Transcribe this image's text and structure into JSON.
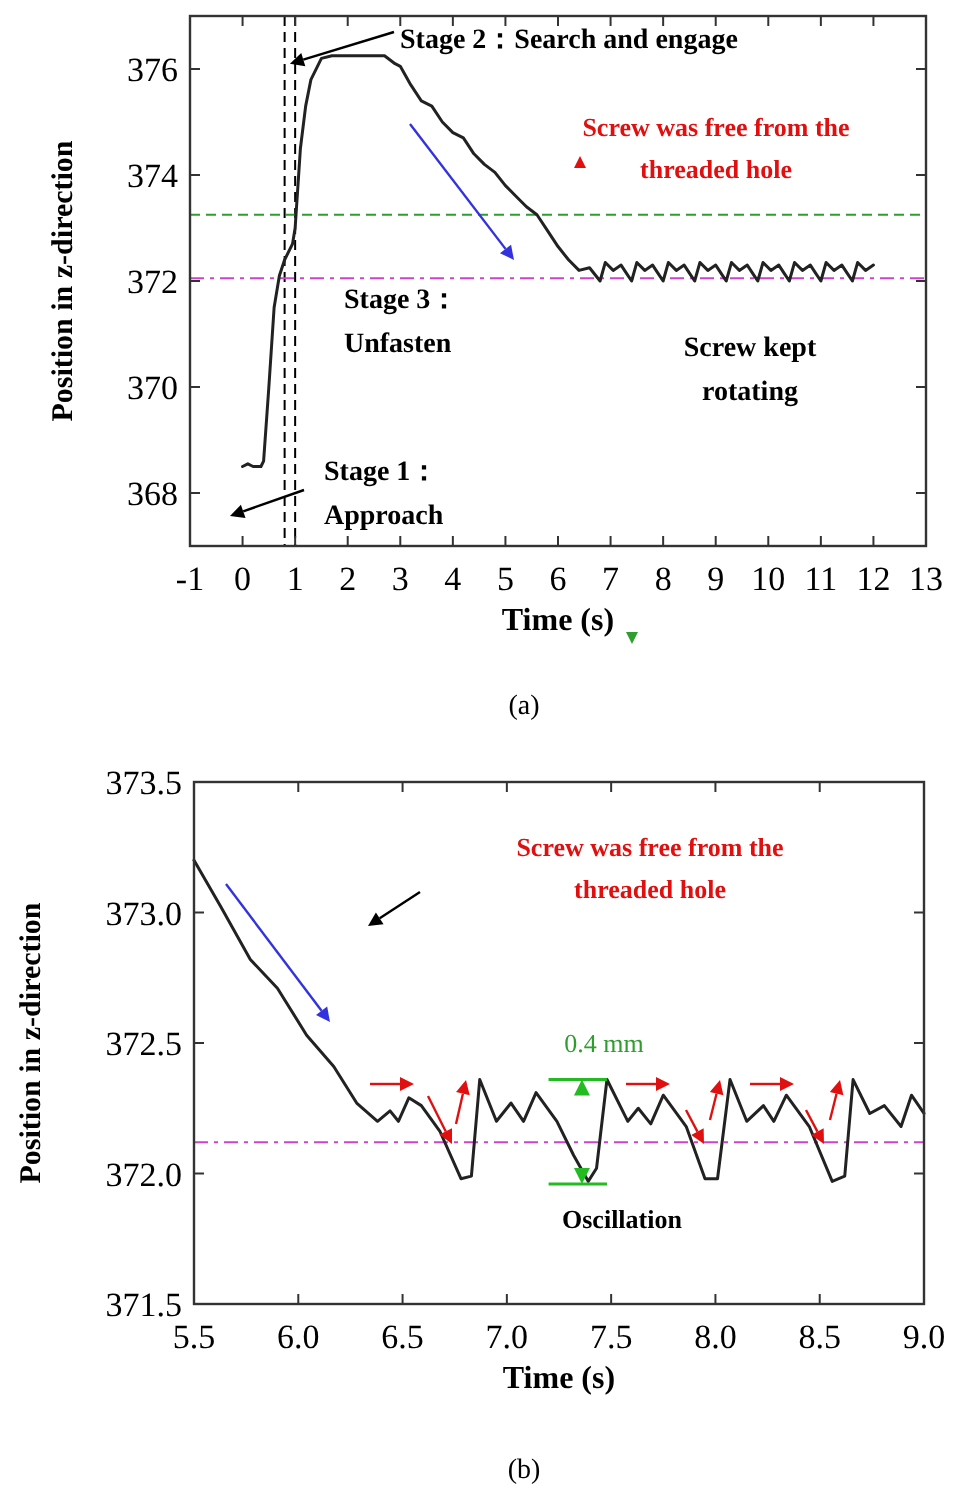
{
  "chart_data": [
    {
      "type": "line",
      "xlabel": "Time (s)",
      "ylabel": "Position in z-direction",
      "xlim": [
        -1,
        13
      ],
      "ylim": [
        367,
        377
      ],
      "xticks": [
        -1,
        0,
        1,
        2,
        3,
        4,
        5,
        6,
        7,
        8,
        9,
        10,
        11,
        12,
        13
      ],
      "yticks": [
        368,
        370,
        372,
        374,
        376
      ],
      "series": [
        {
          "color": "#222222",
          "x": [
            0,
            0.1,
            0.2,
            0.35,
            0.4,
            0.5,
            0.6,
            0.7,
            0.8,
            0.95,
            1.0,
            1.1,
            1.2,
            1.3,
            1.5,
            1.7,
            2.0,
            2.5,
            2.7,
            2.9,
            3.0,
            3.2,
            3.4,
            3.6,
            3.8,
            4.0,
            4.2,
            4.4,
            4.6,
            4.8,
            5.0,
            5.2,
            5.4,
            5.6,
            5.8,
            6.0,
            6.2,
            6.4,
            6.6,
            6.8,
            6.9,
            7.05,
            7.2,
            7.3,
            7.4,
            7.5,
            7.65,
            7.8,
            7.9,
            8.0,
            8.1,
            8.25,
            8.4,
            8.5,
            8.6,
            8.7,
            8.85,
            9.0,
            9.1,
            9.2,
            9.3,
            9.45,
            9.6,
            9.7,
            9.8,
            9.9,
            10.05,
            10.2,
            10.3,
            10.4,
            10.5,
            10.65,
            10.8,
            10.9,
            11.0,
            11.1,
            11.25,
            11.4,
            11.5,
            11.6,
            11.7,
            11.85,
            12.0
          ],
          "values": [
            368.5,
            368.55,
            368.5,
            368.5,
            368.6,
            370.0,
            371.5,
            372.1,
            372.4,
            372.7,
            373.0,
            374.5,
            375.3,
            375.8,
            376.2,
            376.25,
            376.25,
            376.25,
            376.25,
            376.1,
            376.05,
            375.7,
            375.4,
            375.3,
            375.0,
            374.8,
            374.7,
            374.4,
            374.2,
            374.05,
            373.8,
            373.6,
            373.4,
            373.25,
            372.95,
            372.65,
            372.4,
            372.2,
            372.25,
            372.0,
            372.35,
            372.2,
            372.3,
            372.15,
            372.0,
            372.35,
            372.2,
            372.3,
            372.15,
            372.0,
            372.35,
            372.2,
            372.3,
            372.15,
            372.0,
            372.35,
            372.2,
            372.3,
            372.15,
            372.0,
            372.35,
            372.2,
            372.3,
            372.15,
            372.0,
            372.35,
            372.2,
            372.3,
            372.15,
            372.0,
            372.35,
            372.2,
            372.3,
            372.15,
            372.0,
            372.35,
            372.2,
            372.3,
            372.15,
            372.0,
            372.35,
            372.2,
            372.3
          ]
        }
      ],
      "ref_lines": [
        {
          "axis": "x",
          "value": 0.8,
          "color": "#000000",
          "line_style": "dashed"
        },
        {
          "axis": "x",
          "value": 1.0,
          "color": "#000000",
          "line_style": "dashed"
        },
        {
          "axis": "y",
          "value": 373.25,
          "color": "#2e9e2e",
          "line_style": "dashed"
        },
        {
          "axis": "y",
          "value": 372.05,
          "color": "#cc44cc",
          "line_style": "dashdot"
        }
      ],
      "annotations": [
        {
          "text": "Stage 2：Search and engage",
          "x": 0.9,
          "y": 376.1
        },
        "Screw was free from the\nthreaded hole",
        "Stage 3：\nUnfasten",
        "Screw kept\nrotating",
        "Stage 1：\nApproach",
        "(a)"
      ],
      "grid": false,
      "marker": "none",
      "line_style": "solid"
    },
    {
      "type": "line",
      "xlabel": "Time (s)",
      "ylabel": "Position in z-direction",
      "xlim": [
        5.5,
        9.0
      ],
      "ylim": [
        371.5,
        373.5
      ],
      "xticks": [
        {
          "value": 5.5,
          "label": "5.5"
        },
        {
          "value": 6,
          "label": "6.0"
        },
        {
          "value": 6.5,
          "label": "6.5"
        },
        {
          "value": 7,
          "label": "7.0"
        },
        {
          "value": 7.5,
          "label": "7.5"
        },
        {
          "value": 8,
          "label": "8.0"
        },
        {
          "value": 8.5,
          "label": "8.5"
        },
        {
          "value": 9,
          "label": "9.0"
        }
      ],
      "yticks": [
        {
          "value": 371.5,
          "label": "371.5"
        },
        {
          "value": 372,
          "label": "372.0"
        },
        {
          "value": 372.5,
          "label": "372.5"
        },
        {
          "value": 373,
          "label": "373.0"
        },
        {
          "value": 373.5,
          "label": "373.5"
        }
      ],
      "series": [
        {
          "color": "#222222",
          "x": [
            5.5,
            5.63,
            5.77,
            5.9,
            6.04,
            6.17,
            6.28,
            6.38,
            6.44,
            6.48,
            6.53,
            6.59,
            6.68,
            6.78,
            6.83,
            6.87,
            6.95,
            7.02,
            7.08,
            7.14,
            7.24,
            7.32,
            7.39,
            7.43,
            7.48,
            7.58,
            7.63,
            7.69,
            7.75,
            7.86,
            7.95,
            8.01,
            8.07,
            8.15,
            8.23,
            8.28,
            8.34,
            8.45,
            8.56,
            8.62,
            8.66,
            8.74,
            8.81,
            8.89,
            8.94,
            9.0
          ],
          "values": [
            373.2,
            373.02,
            372.82,
            372.71,
            372.53,
            372.41,
            372.27,
            372.2,
            372.24,
            372.2,
            372.29,
            372.26,
            372.16,
            371.98,
            371.99,
            372.36,
            372.2,
            372.27,
            372.2,
            372.31,
            372.2,
            372.07,
            371.97,
            372.02,
            372.36,
            372.2,
            372.25,
            372.19,
            372.3,
            372.18,
            371.98,
            371.98,
            372.36,
            372.2,
            372.26,
            372.2,
            372.3,
            372.18,
            371.97,
            371.99,
            372.36,
            372.23,
            372.26,
            372.18,
            372.3,
            372.23
          ]
        }
      ],
      "ref_lines": [
        {
          "axis": "y",
          "value": 372.12,
          "color": "#cc44cc",
          "line_style": "dashdot"
        }
      ],
      "annotations": [
        "Screw was free from the\nthreaded hole",
        "0.4 mm",
        "Oscillation",
        "(b)"
      ],
      "grid": false,
      "marker": "none",
      "line_style": "solid"
    }
  ]
}
